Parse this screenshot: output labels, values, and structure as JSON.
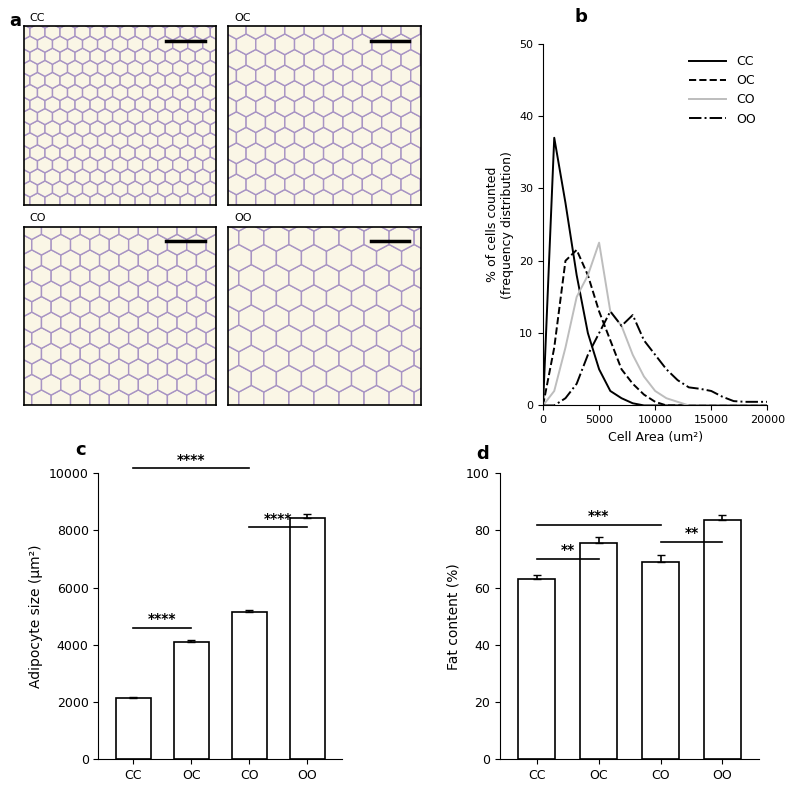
{
  "images": {
    "panel": "a",
    "labels": [
      "CC",
      "OC",
      "CO",
      "OO"
    ]
  },
  "chart_data": [
    {
      "type": "line",
      "panel": "b",
      "x_label": "Cell Area (um²)",
      "y_label": "% of cells counted\n(frequency distribution)",
      "x": [
        0,
        1000,
        2000,
        3000,
        4000,
        5000,
        6000,
        7000,
        8000,
        9000,
        10000,
        11000,
        12000,
        13000,
        14000,
        15000,
        16000,
        17000,
        18000,
        19000,
        20000
      ],
      "series": [
        {
          "name": "CC",
          "color": "#000000",
          "line_style": "solid",
          "values": [
            0,
            37,
            28,
            18,
            10,
            5,
            2,
            1,
            0.3,
            0,
            0,
            0,
            0,
            0,
            0,
            0,
            0,
            0,
            0,
            0,
            0
          ]
        },
        {
          "name": "OC",
          "color": "#000000",
          "line_style": "dashed",
          "values": [
            0,
            8,
            20,
            21.5,
            18,
            13,
            9,
            5,
            3,
            1.5,
            0.5,
            0,
            0,
            0,
            0,
            0,
            0,
            0,
            0,
            0,
            0
          ]
        },
        {
          "name": "CO",
          "color": "#bdbdbd",
          "line_style": "solid",
          "values": [
            0,
            2,
            8,
            15,
            18,
            22.5,
            13,
            11,
            7,
            4,
            2,
            1,
            0.5,
            0,
            0,
            0,
            0,
            0,
            0,
            0,
            0
          ]
        },
        {
          "name": "OO",
          "color": "#000000",
          "line_style": "dashdot",
          "values": [
            0,
            0,
            1,
            3,
            7,
            10,
            13,
            11,
            12.5,
            9,
            7,
            5,
            3.5,
            2.5,
            2.3,
            2,
            1.2,
            0.6,
            0.5,
            0.5,
            0.5
          ]
        }
      ],
      "xlim": [
        0,
        20000
      ],
      "xticks": [
        0,
        5000,
        10000,
        15000,
        20000
      ],
      "ylim": [
        0,
        50
      ],
      "yticks": [
        0,
        10,
        20,
        30,
        40,
        50
      ],
      "legend": "upper right"
    },
    {
      "type": "bar",
      "panel": "c",
      "y_label": "Adipocyte size (μm²)",
      "categories": [
        "CC",
        "OC",
        "CO",
        "OO"
      ],
      "values": [
        2150,
        4100,
        5130,
        8430
      ],
      "errors": [
        30,
        60,
        80,
        150
      ],
      "color": "#ffffff",
      "ylim": [
        0,
        10000
      ],
      "yticks": [
        0,
        2000,
        4000,
        6000,
        8000,
        10000
      ],
      "significance": [
        {
          "from": "CC",
          "to": "OC",
          "label": "****",
          "y": 4600
        },
        {
          "from": "CC",
          "to": "CO",
          "label": "****",
          "y": 10170
        },
        {
          "from": "CO",
          "to": "OO",
          "label": "****",
          "y": 8100
        }
      ]
    },
    {
      "type": "bar",
      "panel": "d",
      "y_label": "Fat content (%)",
      "categories": [
        "CC",
        "OC",
        "CO",
        "OO"
      ],
      "values": [
        63,
        75.5,
        69,
        83.5
      ],
      "errors": [
        1.5,
        2,
        2.5,
        2
      ],
      "color": "#ffffff",
      "ylim": [
        0,
        100
      ],
      "yticks": [
        0,
        20,
        40,
        60,
        80,
        100
      ],
      "significance": [
        {
          "from": "CC",
          "to": "OC",
          "label": "**",
          "y": 70
        },
        {
          "from": "CC",
          "to": "CO",
          "label": "***",
          "y": 82
        },
        {
          "from": "CO",
          "to": "OO",
          "label": "**",
          "y": 76
        }
      ]
    }
  ]
}
